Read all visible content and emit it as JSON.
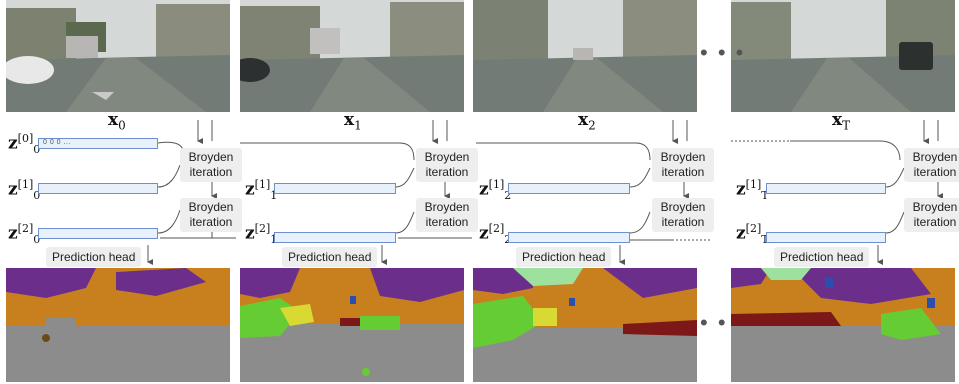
{
  "labels": {
    "x0": "x",
    "x0_sub": "0",
    "x1": "x",
    "x1_sub": "1",
    "x2": "x",
    "x2_sub": "2",
    "xT": "x",
    "xT_sub": "T",
    "z_base": "z",
    "sup0": "[0]",
    "sup1": "[1]",
    "sup2": "[2]",
    "sub0": "0",
    "sub1": "1",
    "sub2": "2",
    "subT": "T",
    "init_text": "0 0 0 ...",
    "broyden": "Broyden iteration",
    "pred_head": "Prediction head",
    "ellipsis": "• • •"
  },
  "colors": {
    "sky": "#c9cfd0",
    "building": "#8b8f80",
    "road": "#727a76",
    "vegetation_seg": "#6b2e8a",
    "building_seg": "#c8801f",
    "road_seg": "#8c8c8c",
    "car_seg": "#7c1818",
    "green_seg": "#66cc33",
    "sign_seg": "#2a4fb0",
    "zbar_fill": "#e8f0fb",
    "zbar_border": "#6b8fcf"
  }
}
